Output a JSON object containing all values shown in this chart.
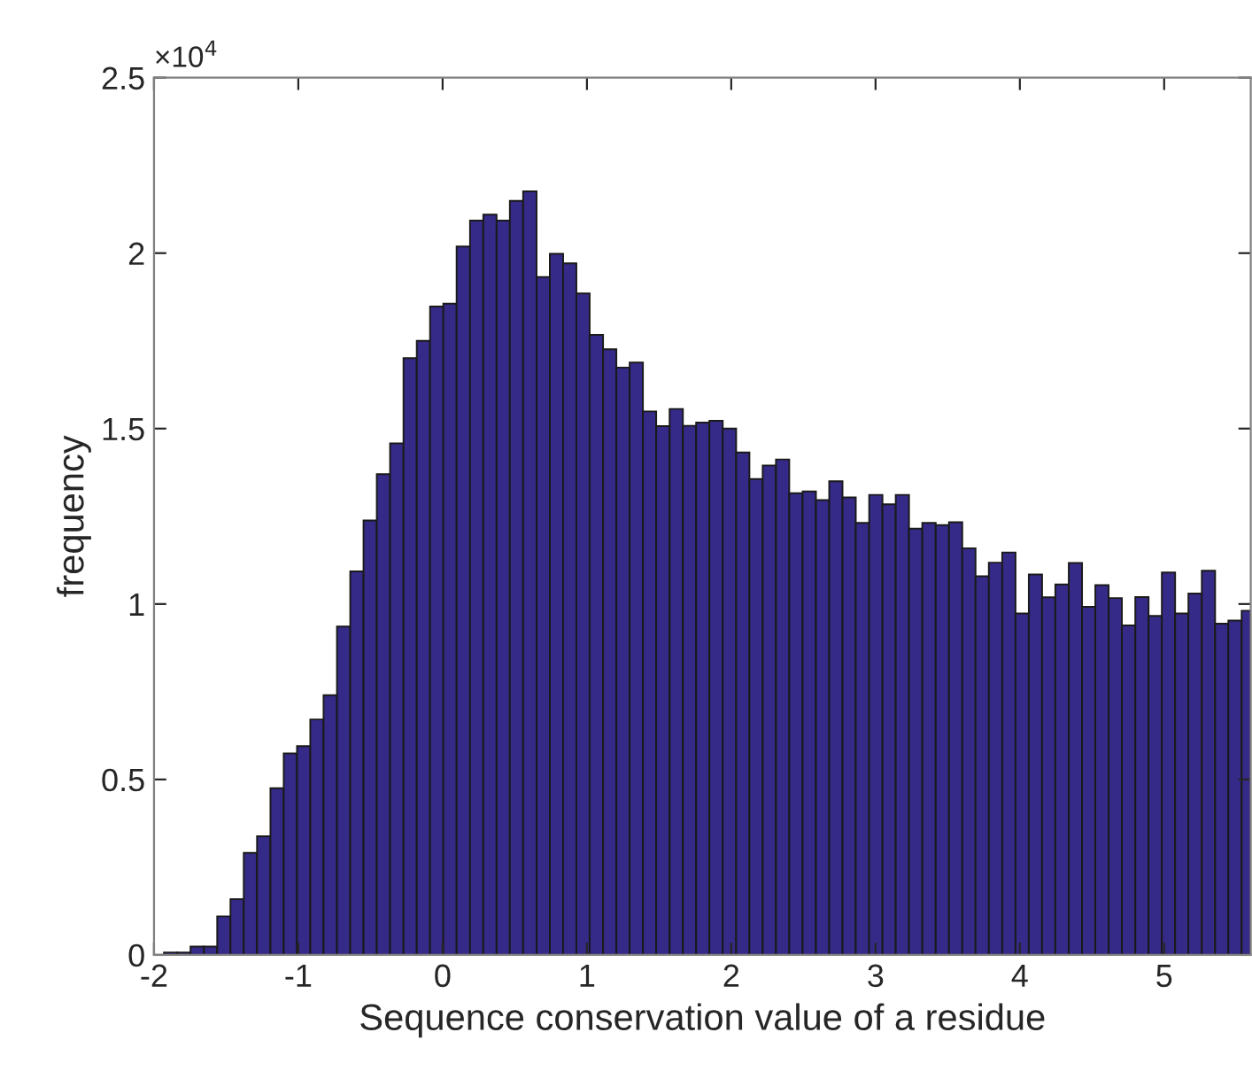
{
  "chart_data": {
    "type": "histogram",
    "xlabel": "Sequence conservation value of a residue",
    "ylabel": "frequency",
    "annotations": [
      "×10$^{4}$"
    ],
    "bins": [
      -1.931,
      -1.839,
      -1.747,
      -1.654,
      -1.562,
      -1.47,
      -1.378,
      -1.286,
      -1.193,
      -1.101,
      -1.009,
      -0.917,
      -0.825,
      -0.732,
      -0.64,
      -0.548,
      -0.456,
      -0.364,
      -0.271,
      -0.179,
      -0.087,
      0.005,
      0.097,
      0.19,
      0.282,
      0.374,
      0.466,
      0.558,
      0.651,
      0.743,
      0.835,
      0.927,
      1.019,
      1.112,
      1.204,
      1.296,
      1.388,
      1.48,
      1.573,
      1.665,
      1.757,
      1.849,
      1.941,
      2.034,
      2.126,
      2.218,
      2.31,
      2.402,
      2.495,
      2.587,
      2.679,
      2.771,
      2.863,
      2.956,
      3.048,
      3.14,
      3.232,
      3.324,
      3.417,
      3.509,
      3.601,
      3.693,
      3.785,
      3.878,
      3.97,
      4.062,
      4.154,
      4.246,
      4.339,
      4.431,
      4.523,
      4.615,
      4.707,
      4.8,
      4.892,
      4.984,
      5.076,
      5.168,
      5.261,
      5.353,
      5.445,
      5.537,
      5.6
    ],
    "values": [
      0.007,
      0.007,
      0.024,
      0.024,
      0.11,
      0.159,
      0.291,
      0.338,
      0.475,
      0.574,
      0.595,
      0.671,
      0.74,
      0.936,
      1.093,
      1.238,
      1.37,
      1.458,
      1.701,
      1.75,
      1.848,
      1.856,
      2.019,
      2.093,
      2.11,
      2.093,
      2.149,
      2.176,
      1.932,
      1.998,
      1.971,
      1.885,
      1.767,
      1.726,
      1.674,
      1.688,
      1.549,
      1.507,
      1.556,
      1.508,
      1.517,
      1.522,
      1.5,
      1.432,
      1.356,
      1.395,
      1.412,
      1.316,
      1.321,
      1.296,
      1.35,
      1.304,
      1.231,
      1.311,
      1.284,
      1.311,
      1.215,
      1.231,
      1.225,
      1.233,
      1.159,
      1.079,
      1.118,
      1.147,
      0.973,
      1.084,
      1.019,
      1.056,
      1.117,
      0.992,
      1.054,
      1.017,
      0.939,
      1.02,
      0.966,
      1.09,
      0.973,
      1.03,
      1.095,
      0.944,
      0.953,
      0.981
    ],
    "color": "#352a87",
    "xlim": [
      -2,
      5.6
    ],
    "xticks": [
      -2,
      -1,
      0,
      1,
      2,
      3,
      4,
      5
    ],
    "ylim": [
      0,
      2.5
    ],
    "yticks": [
      0,
      0.5,
      1,
      1.5,
      2,
      2.5
    ]
  }
}
